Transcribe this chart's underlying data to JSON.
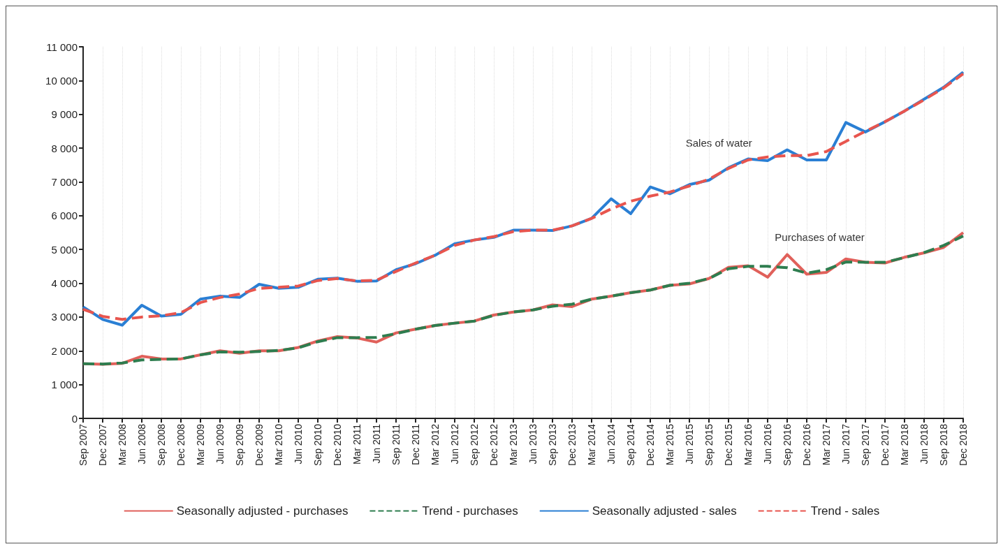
{
  "chart_data": {
    "type": "line",
    "categories": [
      "Sep 2007",
      "Dec 2007",
      "Mar 2008",
      "Jun 2008",
      "Sep 2008",
      "Dec 2008",
      "Mar 2009",
      "Jun 2009",
      "Sep 2009",
      "Dec 2009",
      "Mar 2010",
      "Jun 2010",
      "Sep 2010",
      "Dec 2010",
      "Mar 2011",
      "Jun 2011",
      "Sep 2011",
      "Dec 2011",
      "Mar 2012",
      "Jun 2012",
      "Sep 2012",
      "Dec 2012",
      "Mar 2013",
      "Jun 2013",
      "Sep 2013",
      "Dec 2013",
      "Mar 2014",
      "Jun 2014",
      "Sep 2014",
      "Dec 2014",
      "Mar 2015",
      "Jun 2015",
      "Sep 2015",
      "Dec 2015",
      "Mar 2016",
      "Jun 2016",
      "Sep 2016",
      "Dec 2016",
      "Mar 2017",
      "Jun 2017",
      "Sep 2017",
      "Dec 2017",
      "Mar 2018",
      "Jun 2018",
      "Sep 2018",
      "Dec 2018"
    ],
    "series": [
      {
        "name": "Seasonally adjusted - purchases",
        "color": "#e0605a",
        "line_style": "solid",
        "values": [
          1620,
          1600,
          1630,
          1840,
          1760,
          1760,
          1880,
          2000,
          1930,
          2000,
          2000,
          2100,
          2290,
          2420,
          2380,
          2260,
          2530,
          2640,
          2750,
          2820,
          2880,
          3060,
          3150,
          3210,
          3360,
          3310,
          3530,
          3620,
          3720,
          3800,
          3940,
          3980,
          4140,
          4470,
          4520,
          4180,
          4850,
          4270,
          4320,
          4720,
          4620,
          4600,
          4770,
          4900,
          5060,
          5500
        ]
      },
      {
        "name": "Trend - purchases",
        "color": "#2e7d4f",
        "line_style": "dashed",
        "values": [
          1620,
          1610,
          1640,
          1730,
          1750,
          1760,
          1880,
          1970,
          1960,
          1980,
          2010,
          2090,
          2270,
          2390,
          2390,
          2400,
          2510,
          2640,
          2750,
          2820,
          2880,
          3050,
          3150,
          3210,
          3320,
          3380,
          3530,
          3620,
          3720,
          3800,
          3940,
          4000,
          4140,
          4430,
          4500,
          4500,
          4460,
          4300,
          4400,
          4630,
          4620,
          4620,
          4760,
          4910,
          5120,
          5400
        ]
      },
      {
        "name": "Seasonally adjusted - sales",
        "color": "#2a7fd4",
        "line_style": "solid",
        "values": [
          3300,
          2930,
          2760,
          3350,
          3030,
          3080,
          3530,
          3620,
          3580,
          3970,
          3850,
          3880,
          4120,
          4150,
          4060,
          4070,
          4400,
          4580,
          4830,
          5170,
          5280,
          5360,
          5570,
          5570,
          5560,
          5700,
          5920,
          6500,
          6060,
          6850,
          6650,
          6920,
          7050,
          7420,
          7680,
          7630,
          7950,
          7650,
          7650,
          8760,
          8480,
          8780,
          9100,
          9450,
          9800,
          10250
        ]
      },
      {
        "name": "Trend - sales",
        "color": "#e8554e",
        "line_style": "dashed",
        "values": [
          3230,
          3020,
          2930,
          3000,
          3040,
          3130,
          3430,
          3580,
          3680,
          3850,
          3880,
          3920,
          4080,
          4140,
          4070,
          4090,
          4350,
          4600,
          4830,
          5120,
          5280,
          5380,
          5530,
          5570,
          5570,
          5700,
          5920,
          6200,
          6430,
          6580,
          6700,
          6880,
          7080,
          7400,
          7650,
          7740,
          7780,
          7780,
          7900,
          8200,
          8500,
          8780,
          9100,
          9430,
          9780,
          10200
        ]
      }
    ],
    "annotations": [
      "Sales of water",
      "Purchases of water"
    ],
    "ylim": [
      0,
      11000
    ],
    "yticks": [
      0,
      {
        "value": 1000,
        "label": "1 000"
      },
      {
        "value": 2000,
        "label": "2 000"
      },
      {
        "value": 3000,
        "label": "3 000"
      },
      {
        "value": 4000,
        "label": "4 000"
      },
      {
        "value": 5000,
        "label": "5 000"
      },
      {
        "value": 6000,
        "label": "6 000"
      },
      {
        "value": 7000,
        "label": "7 000"
      },
      {
        "value": 8000,
        "label": "8 000"
      },
      {
        "value": 9000,
        "label": "9 000"
      },
      {
        "value": 10000,
        "label": "10 000"
      },
      {
        "value": 11000,
        "label": "11 000"
      }
    ],
    "grid": "x",
    "legend": "bottom",
    "marker": "none"
  }
}
